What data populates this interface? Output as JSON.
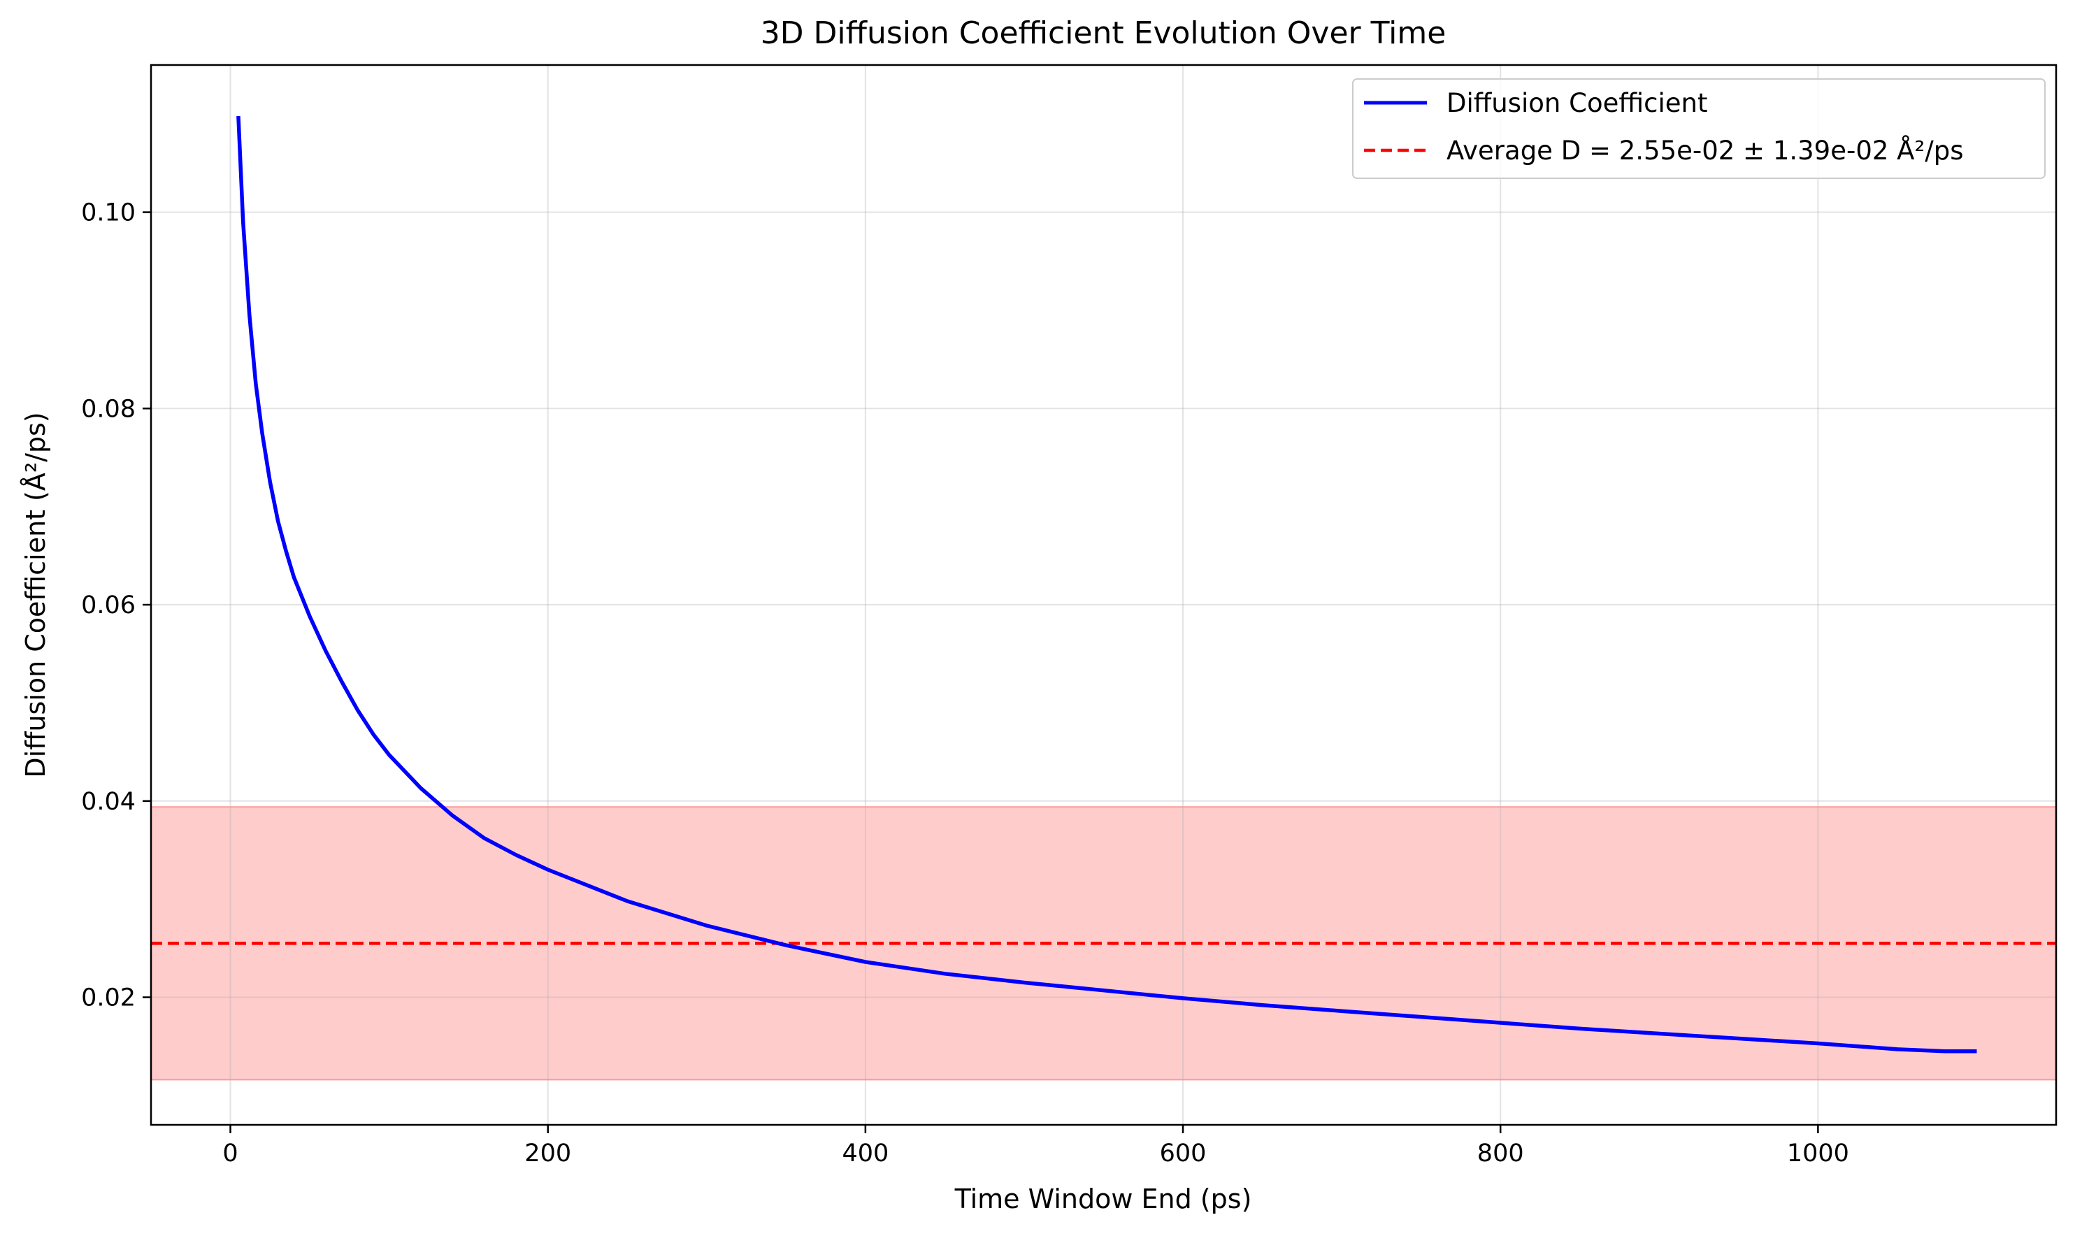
{
  "chart_data": {
    "type": "line",
    "title": "3D Diffusion Coefficient Evolution Over Time",
    "xlabel": "Time Window End (ps)",
    "ylabel": "Diffusion Coefficient (Å²/ps)",
    "xlim": [
      -50,
      1150
    ],
    "ylim": [
      0.007,
      0.115
    ],
    "xticks": [
      0,
      200,
      400,
      600,
      800,
      1000
    ],
    "xtick_labels": [
      "0",
      "200",
      "400",
      "600",
      "800",
      "1000"
    ],
    "yticks": [
      0.02,
      0.04,
      0.06,
      0.08,
      0.1
    ],
    "ytick_labels": [
      "0.02",
      "0.04",
      "0.06",
      "0.08",
      "0.10"
    ],
    "grid": true,
    "legend_position": "top-right",
    "series": [
      {
        "name": "Diffusion Coefficient",
        "color": "#0000ff",
        "style": "solid",
        "x": [
          5,
          8,
          12,
          16,
          20,
          25,
          30,
          35,
          40,
          50,
          60,
          70,
          80,
          90,
          100,
          120,
          140,
          160,
          180,
          200,
          250,
          300,
          350,
          400,
          450,
          500,
          550,
          600,
          650,
          700,
          750,
          800,
          850,
          900,
          950,
          1000,
          1050,
          1080,
          1100
        ],
        "y": [
          0.1098,
          0.099,
          0.0895,
          0.0825,
          0.0775,
          0.0725,
          0.0685,
          0.0655,
          0.0628,
          0.0588,
          0.0553,
          0.0522,
          0.0493,
          0.0468,
          0.0447,
          0.0413,
          0.0385,
          0.0362,
          0.0345,
          0.033,
          0.0298,
          0.0273,
          0.0253,
          0.0236,
          0.0224,
          0.0215,
          0.0207,
          0.0199,
          0.0192,
          0.0186,
          0.018,
          0.0174,
          0.0168,
          0.0163,
          0.0158,
          0.0153,
          0.0147,
          0.0145,
          0.0145
        ]
      }
    ],
    "average_line": {
      "label": "Average D = 2.55e-02 ± 1.39e-02 Å²/ps",
      "value": 0.0255,
      "std": 0.0139,
      "color": "#ff0000",
      "band_color": "#ffcccc",
      "style": "dashed"
    }
  }
}
